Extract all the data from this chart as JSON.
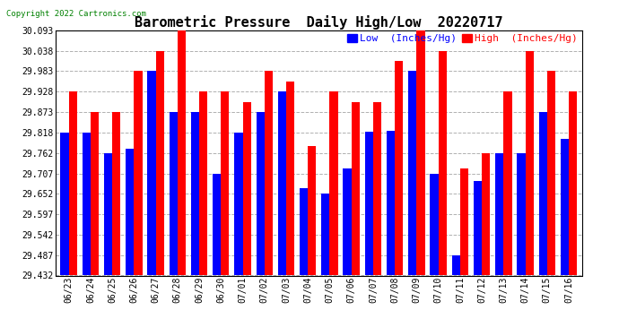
{
  "title": "Barometric Pressure  Daily High/Low  20220717",
  "copyright": "Copyright 2022 Cartronics.com",
  "legend_low": "Low  (Inches/Hg)",
  "legend_high": "High  (Inches/Hg)",
  "categories": [
    "06/23",
    "06/24",
    "06/25",
    "06/26",
    "06/27",
    "06/28",
    "06/29",
    "06/30",
    "07/01",
    "07/02",
    "07/03",
    "07/04",
    "07/05",
    "07/06",
    "07/07",
    "07/08",
    "07/09",
    "07/10",
    "07/11",
    "07/12",
    "07/13",
    "07/14",
    "07/15",
    "07/16"
  ],
  "low_values": [
    29.818,
    29.818,
    29.762,
    29.773,
    29.983,
    29.873,
    29.873,
    29.707,
    29.818,
    29.873,
    29.928,
    29.668,
    29.652,
    29.72,
    29.82,
    29.822,
    29.983,
    29.707,
    29.487,
    29.686,
    29.762,
    29.762,
    29.873,
    29.8
  ],
  "high_values": [
    29.928,
    29.873,
    29.873,
    29.983,
    30.038,
    30.093,
    29.928,
    29.928,
    29.9,
    29.983,
    29.955,
    29.78,
    29.928,
    29.9,
    29.9,
    30.01,
    30.093,
    30.038,
    29.72,
    29.762,
    29.928,
    30.038,
    29.983,
    29.928
  ],
  "ylim_min": 29.432,
  "ylim_max": 30.093,
  "yticks": [
    29.432,
    29.487,
    29.542,
    29.597,
    29.652,
    29.707,
    29.762,
    29.818,
    29.873,
    29.928,
    29.983,
    30.038,
    30.093
  ],
  "low_color": "#0000ff",
  "high_color": "#ff0000",
  "background_color": "#ffffff",
  "grid_color": "#b0b0b0",
  "bar_width": 0.38,
  "title_fontsize": 11,
  "tick_fontsize": 7,
  "legend_fontsize": 8,
  "copyright_color": "#008000"
}
